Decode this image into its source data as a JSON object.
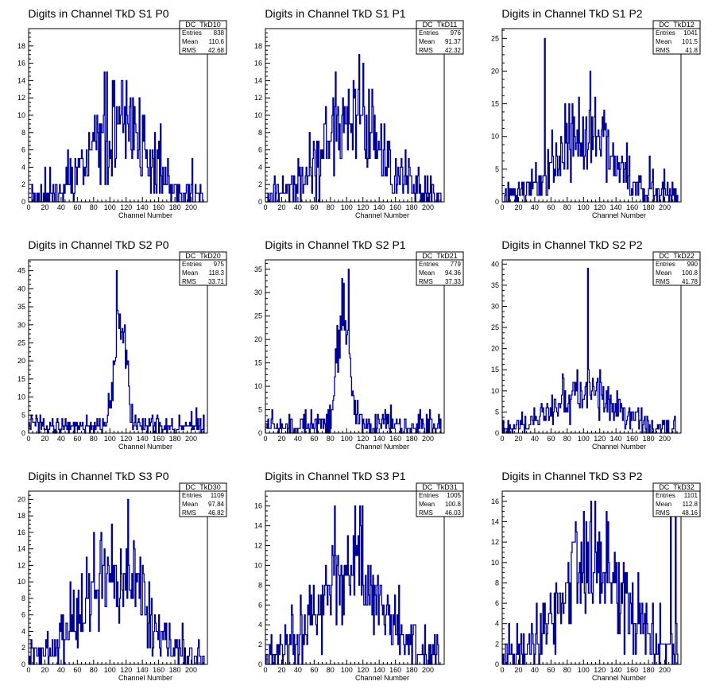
{
  "chart_data": [
    {
      "type": "histogram",
      "title": "Digits in Channel TkD S1 P0",
      "xlabel": "Channel Number",
      "xlim": [
        0,
        220
      ],
      "ylim": [
        0,
        20
      ],
      "xticks": [
        0,
        20,
        40,
        60,
        80,
        100,
        120,
        140,
        160,
        180,
        200
      ],
      "yticks": [
        0,
        2,
        4,
        6,
        8,
        10,
        12,
        14,
        16,
        18
      ],
      "stats": {
        "name": "DC_TkD10",
        "entries": "838",
        "mean": "110.6",
        "rms": "42.68"
      },
      "bin_width": 1,
      "seed": 11,
      "spikes": []
    },
    {
      "type": "histogram",
      "title": "Digits in Channel TkD S1 P1",
      "xlabel": "Channel Number",
      "xlim": [
        0,
        220
      ],
      "ylim": [
        0,
        20
      ],
      "xticks": [
        0,
        20,
        40,
        60,
        80,
        100,
        120,
        140,
        160,
        180,
        200
      ],
      "yticks": [
        0,
        2,
        4,
        6,
        8,
        10,
        12,
        14,
        16,
        18
      ],
      "stats": {
        "name": "DC_TkD11",
        "entries": "976",
        "mean": "91.37",
        "rms": "42.32"
      },
      "bin_width": 1,
      "seed": 21,
      "spikes": []
    },
    {
      "type": "histogram",
      "title": "Digits in Channel TkD S1 P2",
      "xlabel": "Channel Number",
      "xlim": [
        0,
        220
      ],
      "ylim": [
        0,
        26.5
      ],
      "xticks": [
        0,
        20,
        40,
        60,
        80,
        100,
        120,
        140,
        160,
        180,
        200
      ],
      "yticks": [
        0,
        5,
        10,
        15,
        20,
        25
      ],
      "stats": {
        "name": "DC_TkD12",
        "entries": "1041",
        "mean": "101.5",
        "rms": "41.8"
      },
      "bin_width": 1,
      "seed": 31,
      "spikes": [
        [
          52,
          25
        ],
        [
          108,
          20
        ]
      ]
    },
    {
      "type": "histogram",
      "title": "Digits in Channel TkD S2 P0",
      "xlabel": "Channel Number",
      "xlim": [
        0,
        220
      ],
      "ylim": [
        0,
        48
      ],
      "xticks": [
        0,
        20,
        40,
        60,
        80,
        100,
        120,
        140,
        160,
        180,
        200
      ],
      "yticks": [
        0,
        5,
        10,
        15,
        20,
        25,
        30,
        35,
        40,
        45
      ],
      "stats": {
        "name": "DC_TkD20",
        "entries": "975",
        "mean": "118.3",
        "rms": "33.71"
      },
      "bin_width": 1,
      "seed": 41,
      "spikes": [
        [
          108,
          45
        ]
      ]
    },
    {
      "type": "histogram",
      "title": "Digits in Channel TkD S2 P1",
      "xlabel": "Channel Number",
      "xlim": [
        0,
        220
      ],
      "ylim": [
        0,
        37
      ],
      "xticks": [
        0,
        20,
        40,
        60,
        80,
        100,
        120,
        140,
        160,
        180,
        200
      ],
      "yticks": [
        0,
        5,
        10,
        15,
        20,
        25,
        30,
        35
      ],
      "stats": {
        "name": "DC_TkD21",
        "entries": "779",
        "mean": "94.36",
        "rms": "37.33"
      },
      "bin_width": 1,
      "seed": 51,
      "spikes": [
        [
          102,
          35
        ]
      ]
    },
    {
      "type": "histogram",
      "title": "Digits in Channel TkD S2 P2",
      "xlabel": "Channel Number",
      "xlim": [
        0,
        220
      ],
      "ylim": [
        0,
        41
      ],
      "xticks": [
        0,
        20,
        40,
        60,
        80,
        100,
        120,
        140,
        160,
        180,
        200
      ],
      "yticks": [
        0,
        5,
        10,
        15,
        20,
        25,
        30,
        35,
        40
      ],
      "stats": {
        "name": "DC_TkD22",
        "entries": "990",
        "mean": "100.8",
        "rms": "41.78"
      },
      "bin_width": 1,
      "seed": 61,
      "spikes": [
        [
          105,
          39
        ]
      ]
    },
    {
      "type": "histogram",
      "title": "Digits in Channel TkD S3 P0",
      "xlabel": "Channel Number",
      "xlim": [
        0,
        220
      ],
      "ylim": [
        0,
        21
      ],
      "xticks": [
        0,
        20,
        40,
        60,
        80,
        100,
        120,
        140,
        160,
        180,
        200
      ],
      "yticks": [
        0,
        2,
        4,
        6,
        8,
        10,
        12,
        14,
        16,
        18,
        20
      ],
      "stats": {
        "name": "DC_TkD30",
        "entries": "1109",
        "mean": "97.84",
        "rms": "46.82"
      },
      "bin_width": 1,
      "seed": 71,
      "spikes": [
        [
          122,
          20
        ]
      ]
    },
    {
      "type": "histogram",
      "title": "Digits in Channel TkD S3 P1",
      "xlabel": "Channel Number",
      "xlim": [
        0,
        220
      ],
      "ylim": [
        0,
        17.5
      ],
      "xticks": [
        0,
        20,
        40,
        60,
        80,
        100,
        120,
        140,
        160,
        180,
        200
      ],
      "yticks": [
        0,
        2,
        4,
        6,
        8,
        10,
        12,
        14,
        16
      ],
      "stats": {
        "name": "DC_TkD31",
        "entries": "1005",
        "mean": "100.8",
        "rms": "46.03"
      },
      "bin_width": 1,
      "seed": 81,
      "spikes": [
        [
          110,
          16
        ]
      ]
    },
    {
      "type": "histogram",
      "title": "Digits in Channel TkD S3 P2",
      "xlabel": "Channel Number",
      "xlim": [
        0,
        220
      ],
      "ylim": [
        0,
        17
      ],
      "xticks": [
        0,
        20,
        40,
        60,
        80,
        100,
        120,
        140,
        160,
        180,
        200
      ],
      "yticks": [
        0,
        2,
        4,
        6,
        8,
        10,
        12,
        14,
        16
      ],
      "stats": {
        "name": "DC_TkD32",
        "entries": "1101",
        "mean": "112.8",
        "rms": "48.16"
      },
      "bin_width": 1,
      "seed": 91,
      "spikes": [
        [
          207,
          16
        ],
        [
          213,
          16
        ],
        [
          100,
          15
        ]
      ]
    }
  ],
  "stats_labels": {
    "entries": "Entries",
    "mean": "Mean",
    "rms": "RMS"
  },
  "colors": {
    "histogram": "#000099",
    "axis": "#000000",
    "background": "#ffffff"
  }
}
